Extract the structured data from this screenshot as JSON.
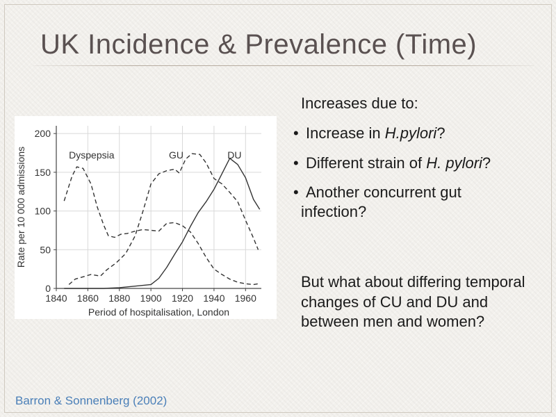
{
  "slide": {
    "title": "UK Incidence & Prevalence (Time)",
    "citation": "Barron & Sonnenberg (2002)",
    "colors": {
      "citation": "#4a7fb8",
      "title": "#5a5151"
    }
  },
  "text": {
    "intro": "Increases due to:",
    "bullets": [
      {
        "prefix": "Increase in ",
        "italic": "H.pylori",
        "suffix": "?"
      },
      {
        "prefix": "Different strain of ",
        "italic": "H. pylori",
        "suffix": "?"
      },
      {
        "prefix": "Another concurrent gut ",
        "line2": "infection?"
      }
    ],
    "question": "But what about differing temporal changes of CU and DU and between men and women?"
  },
  "chart_data": {
    "type": "line",
    "xlabel": "Period of hospitalisation, London",
    "ylabel": "Rate per 10 000 admissions",
    "xlim": [
      1840,
      1970
    ],
    "ylim": [
      0,
      210
    ],
    "xticks": [
      1840,
      1860,
      1880,
      1900,
      1920,
      1940,
      1960
    ],
    "yticks": [
      0,
      50,
      100,
      150,
      200
    ],
    "grid": true,
    "series": [
      {
        "name": "Dyspepsia",
        "style": "dashed",
        "x": [
          1845,
          1850,
          1853,
          1857,
          1862,
          1866,
          1870,
          1873,
          1877,
          1881,
          1885,
          1890,
          1895,
          1900,
          1905,
          1910,
          1915,
          1920,
          1925,
          1930,
          1935,
          1940,
          1945,
          1950,
          1955,
          1960,
          1965,
          1968
        ],
        "y": [
          113,
          145,
          157,
          155,
          135,
          105,
          82,
          68,
          66,
          70,
          71,
          74,
          76,
          75,
          74,
          84,
          85,
          81,
          73,
          58,
          40,
          25,
          18,
          12,
          8,
          6,
          5,
          6
        ]
      },
      {
        "name": "GU",
        "style": "dashed",
        "x": [
          1848,
          1852,
          1857,
          1862,
          1868,
          1872,
          1878,
          1884,
          1890,
          1895,
          1900,
          1905,
          1910,
          1915,
          1918,
          1922,
          1926,
          1931,
          1935,
          1940,
          1945,
          1950,
          1955,
          1960,
          1965,
          1968
        ],
        "y": [
          5,
          12,
          15,
          18,
          16,
          24,
          33,
          45,
          68,
          100,
          135,
          148,
          152,
          154,
          149,
          167,
          174,
          173,
          162,
          142,
          135,
          124,
          112,
          88,
          65,
          50
        ]
      },
      {
        "name": "DU",
        "style": "solid",
        "x": [
          1845,
          1860,
          1870,
          1880,
          1890,
          1900,
          1905,
          1910,
          1915,
          1920,
          1925,
          1930,
          1935,
          1940,
          1945,
          1950,
          1955,
          1960,
          1965,
          1969
        ],
        "y": [
          0,
          0,
          0,
          1,
          3,
          5,
          13,
          27,
          44,
          60,
          80,
          98,
          112,
          128,
          148,
          168,
          160,
          143,
          115,
          102
        ]
      }
    ]
  }
}
